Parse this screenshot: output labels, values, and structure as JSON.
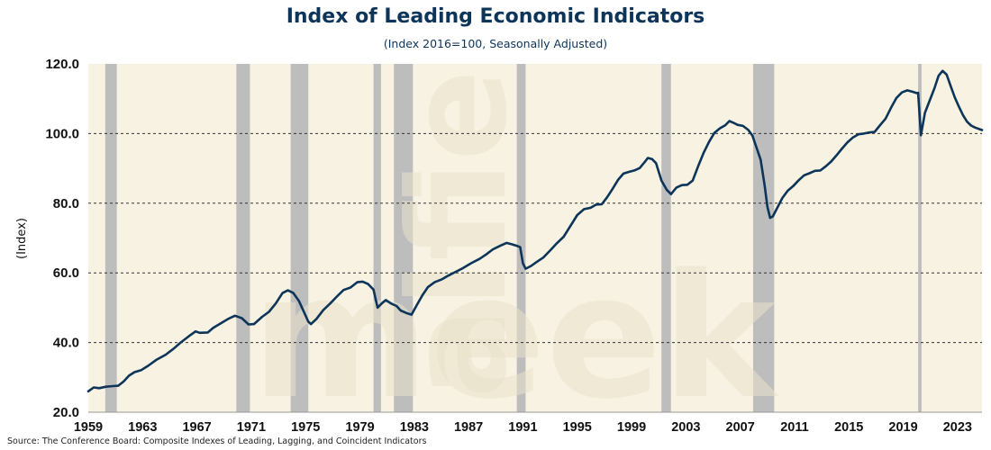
{
  "chart_data": {
    "type": "line",
    "title": "Index of Leading Economic Indicators",
    "subtitle": "(Index 2016=100, Seasonally Adjusted)",
    "ylabel": "(Index)",
    "xlabel": "",
    "source": "Source: The Conference Board: Composite Indexes of Leading, Lagging, and Coincident Indicators",
    "watermark": [
      "alfie",
      "meek"
    ],
    "xlim": [
      1959,
      2024.8
    ],
    "ylim": [
      20,
      120
    ],
    "yticks": [
      20,
      40,
      60,
      80,
      100,
      120
    ],
    "ytick_labels": [
      "20.0",
      "40.0",
      "60.0",
      "80.0",
      "100.0",
      "120.0"
    ],
    "xticks": [
      1959,
      1963,
      1967,
      1971,
      1975,
      1979,
      1983,
      1987,
      1991,
      1995,
      1999,
      2003,
      2007,
      2011,
      2015,
      2019,
      2023
    ],
    "xtick_labels": [
      "1959",
      "1963",
      "1967",
      "1971",
      "1975",
      "1979",
      "1983",
      "1987",
      "1991",
      "1995",
      "1999",
      "2003",
      "2007",
      "2011",
      "2015",
      "2019",
      "2023"
    ],
    "grid": "horizontal dashed",
    "reference_line": 100,
    "colors": {
      "line": "#0d3459",
      "background": "#f7f2e1",
      "recession": "#bdbdbd",
      "title": "#0d3459"
    },
    "recessions": [
      {
        "start": 1960.25,
        "end": 1961.1
      },
      {
        "start": 1969.9,
        "end": 1970.9
      },
      {
        "start": 1973.9,
        "end": 1975.2
      },
      {
        "start": 1980.0,
        "end": 1980.55
      },
      {
        "start": 1981.5,
        "end": 1982.9
      },
      {
        "start": 1990.55,
        "end": 1991.2
      },
      {
        "start": 2001.2,
        "end": 2001.9
      },
      {
        "start": 2007.95,
        "end": 2009.5
      },
      {
        "start": 2020.1,
        "end": 2020.35
      }
    ],
    "series": [
      {
        "values": [
          [
            1959.0,
            26.0
          ],
          [
            1959.4,
            27.1
          ],
          [
            1959.8,
            26.9
          ],
          [
            1960.3,
            27.3
          ],
          [
            1960.8,
            27.5
          ],
          [
            1961.2,
            27.6
          ],
          [
            1961.6,
            28.8
          ],
          [
            1962.0,
            30.5
          ],
          [
            1962.4,
            31.5
          ],
          [
            1962.9,
            32.1
          ],
          [
            1963.4,
            33.3
          ],
          [
            1964.0,
            35.0
          ],
          [
            1964.7,
            36.5
          ],
          [
            1965.3,
            38.3
          ],
          [
            1965.8,
            40.0
          ],
          [
            1966.4,
            41.8
          ],
          [
            1966.9,
            43.2
          ],
          [
            1967.2,
            42.8
          ],
          [
            1967.8,
            42.9
          ],
          [
            1968.2,
            44.2
          ],
          [
            1968.8,
            45.6
          ],
          [
            1969.3,
            46.8
          ],
          [
            1969.8,
            47.7
          ],
          [
            1970.3,
            47.0
          ],
          [
            1970.8,
            45.2
          ],
          [
            1971.2,
            45.3
          ],
          [
            1971.8,
            47.4
          ],
          [
            1972.3,
            48.8
          ],
          [
            1972.8,
            51.2
          ],
          [
            1973.3,
            54.2
          ],
          [
            1973.7,
            55.0
          ],
          [
            1974.1,
            54.2
          ],
          [
            1974.5,
            52.0
          ],
          [
            1974.9,
            48.6
          ],
          [
            1975.2,
            46.0
          ],
          [
            1975.4,
            45.3
          ],
          [
            1975.8,
            46.8
          ],
          [
            1976.3,
            49.3
          ],
          [
            1976.8,
            51.2
          ],
          [
            1977.3,
            53.2
          ],
          [
            1977.8,
            55.1
          ],
          [
            1978.3,
            55.8
          ],
          [
            1978.8,
            57.3
          ],
          [
            1979.2,
            57.5
          ],
          [
            1979.6,
            56.8
          ],
          [
            1980.0,
            55.2
          ],
          [
            1980.3,
            50.0
          ],
          [
            1980.6,
            51.2
          ],
          [
            1980.9,
            52.2
          ],
          [
            1981.3,
            51.2
          ],
          [
            1981.7,
            50.5
          ],
          [
            1982.0,
            49.2
          ],
          [
            1982.4,
            48.5
          ],
          [
            1982.8,
            48.0
          ],
          [
            1983.2,
            50.8
          ],
          [
            1983.6,
            53.6
          ],
          [
            1984.0,
            55.9
          ],
          [
            1984.5,
            57.3
          ],
          [
            1985.0,
            58.1
          ],
          [
            1985.5,
            59.2
          ],
          [
            1986.0,
            60.2
          ],
          [
            1986.6,
            61.4
          ],
          [
            1987.2,
            62.8
          ],
          [
            1987.8,
            64.0
          ],
          [
            1988.3,
            65.3
          ],
          [
            1988.8,
            66.8
          ],
          [
            1989.4,
            67.9
          ],
          [
            1989.8,
            68.6
          ],
          [
            1990.2,
            68.2
          ],
          [
            1990.6,
            67.7
          ],
          [
            1990.8,
            67.4
          ],
          [
            1991.0,
            62.8
          ],
          [
            1991.2,
            61.2
          ],
          [
            1991.6,
            62.0
          ],
          [
            1992.0,
            63.1
          ],
          [
            1992.5,
            64.4
          ],
          [
            1993.0,
            66.4
          ],
          [
            1993.5,
            68.5
          ],
          [
            1994.0,
            70.4
          ],
          [
            1994.5,
            73.5
          ],
          [
            1995.0,
            76.6
          ],
          [
            1995.5,
            78.3
          ],
          [
            1996.0,
            78.7
          ],
          [
            1996.4,
            79.6
          ],
          [
            1996.8,
            79.7
          ],
          [
            1997.2,
            81.7
          ],
          [
            1997.6,
            84.1
          ],
          [
            1998.0,
            86.7
          ],
          [
            1998.4,
            88.5
          ],
          [
            1998.8,
            89.0
          ],
          [
            1999.2,
            89.4
          ],
          [
            1999.6,
            90.1
          ],
          [
            2000.0,
            92.0
          ],
          [
            2000.2,
            93.0
          ],
          [
            2000.5,
            92.7
          ],
          [
            2000.8,
            91.5
          ],
          [
            2001.2,
            86.5
          ],
          [
            2001.6,
            83.8
          ],
          [
            2001.9,
            82.6
          ],
          [
            2002.3,
            84.5
          ],
          [
            2002.7,
            85.2
          ],
          [
            2003.1,
            85.3
          ],
          [
            2003.5,
            86.5
          ],
          [
            2003.9,
            90.6
          ],
          [
            2004.3,
            94.4
          ],
          [
            2004.7,
            97.6
          ],
          [
            2005.1,
            100.2
          ],
          [
            2005.5,
            101.5
          ],
          [
            2005.9,
            102.4
          ],
          [
            2006.2,
            103.6
          ],
          [
            2006.5,
            103.1
          ],
          [
            2006.8,
            102.5
          ],
          [
            2007.2,
            102.2
          ],
          [
            2007.6,
            101.0
          ],
          [
            2007.9,
            99.4
          ],
          [
            2008.2,
            96.0
          ],
          [
            2008.5,
            92.5
          ],
          [
            2008.8,
            85.0
          ],
          [
            2009.0,
            79.0
          ],
          [
            2009.2,
            75.8
          ],
          [
            2009.4,
            76.2
          ],
          [
            2009.7,
            78.5
          ],
          [
            2010.1,
            81.5
          ],
          [
            2010.5,
            83.6
          ],
          [
            2010.9,
            84.9
          ],
          [
            2011.3,
            86.6
          ],
          [
            2011.7,
            88.0
          ],
          [
            2012.1,
            88.6
          ],
          [
            2012.5,
            89.3
          ],
          [
            2012.9,
            89.4
          ],
          [
            2013.3,
            90.6
          ],
          [
            2013.7,
            92.0
          ],
          [
            2014.1,
            93.8
          ],
          [
            2014.5,
            95.7
          ],
          [
            2014.9,
            97.5
          ],
          [
            2015.3,
            98.9
          ],
          [
            2015.7,
            99.8
          ],
          [
            2016.1,
            100.0
          ],
          [
            2016.5,
            100.3
          ],
          [
            2016.9,
            100.5
          ],
          [
            2017.3,
            102.4
          ],
          [
            2017.7,
            104.3
          ],
          [
            2018.1,
            107.4
          ],
          [
            2018.5,
            110.2
          ],
          [
            2018.9,
            111.8
          ],
          [
            2019.3,
            112.4
          ],
          [
            2019.7,
            112.0
          ],
          [
            2020.0,
            111.6
          ],
          [
            2020.1,
            111.7
          ],
          [
            2020.3,
            99.5
          ],
          [
            2020.6,
            106.0
          ],
          [
            2020.9,
            109.0
          ],
          [
            2021.3,
            113.0
          ],
          [
            2021.6,
            116.6
          ],
          [
            2021.9,
            118.0
          ],
          [
            2022.2,
            116.9
          ],
          [
            2022.5,
            113.6
          ],
          [
            2022.8,
            110.4
          ],
          [
            2023.1,
            107.7
          ],
          [
            2023.4,
            105.3
          ],
          [
            2023.7,
            103.4
          ],
          [
            2024.0,
            102.3
          ],
          [
            2024.3,
            101.7
          ],
          [
            2024.8,
            101.0
          ]
        ]
      }
    ]
  }
}
